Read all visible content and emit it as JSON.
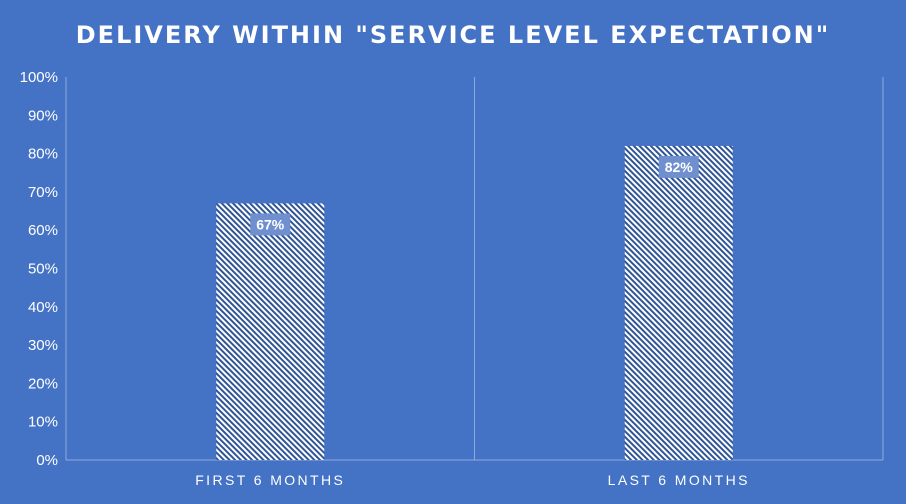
{
  "chart_data": {
    "type": "bar",
    "title": "DELIVERY WITHIN \"SERVICE LEVEL EXPECTATION\"",
    "xlabel": "",
    "ylabel": "",
    "categories": [
      "FIRST 6 MONTHS",
      "LAST 6 MONTHS"
    ],
    "values": [
      67,
      82
    ],
    "value_labels": [
      "67%",
      "82%"
    ],
    "ylim": [
      0,
      100
    ],
    "y_ticks": [
      0,
      10,
      20,
      30,
      40,
      50,
      60,
      70,
      80,
      90,
      100
    ],
    "y_tick_labels": [
      "0%",
      "10%",
      "20%",
      "30%",
      "40%",
      "50%",
      "60%",
      "70%",
      "80%",
      "90%",
      "100%"
    ],
    "grid": false,
    "legend": "none",
    "colors": {
      "background": "#4472c4",
      "bar_stripe": "#2f5597",
      "bar_fill": "#ffffff",
      "axis": "#8faadc",
      "label_box": "#6f8fcf",
      "text": "#ffffff"
    }
  }
}
